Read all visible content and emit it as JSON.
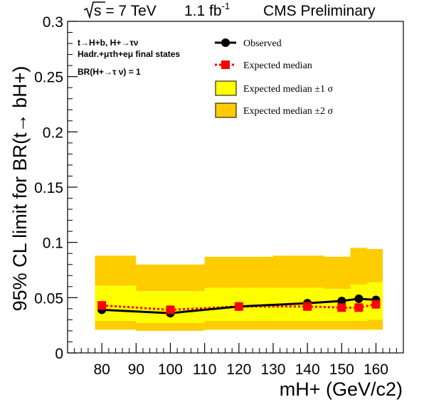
{
  "header": {
    "energy_label": "s = 7 TeV",
    "lumi_value": "1.1 fb",
    "lumi_exp": "-1",
    "experiment": "CMS Preliminary"
  },
  "annotations": {
    "line1": "t→H+b, H+→τν",
    "line2": "Hadr.+μτh+eμ final states",
    "line3": "BR(H+→τ ν) = 1"
  },
  "legend": {
    "observed": "Observed",
    "expected": "Expected median",
    "band1": "Expected median ±1 σ",
    "band2": "Expected median ±2 σ"
  },
  "colors": {
    "observed": "#000000",
    "expected": "#ff0000",
    "band1": "#ffff00",
    "band2": "#ffcc00"
  },
  "chart_data": {
    "type": "line",
    "xlabel": "mH+ (GeV/c2)",
    "ylabel": "95% CL limit for BR(t→ bH+)",
    "xlim": [
      70,
      168
    ],
    "ylim": [
      0,
      0.3
    ],
    "x_ticks": [
      80,
      90,
      100,
      110,
      120,
      130,
      140,
      150,
      160
    ],
    "y_ticks": [
      0,
      0.05,
      0.1,
      0.15,
      0.2,
      0.25,
      0.3
    ],
    "y_tick_labels": [
      "0",
      "0.05",
      "0.1",
      "0.15",
      "0.2",
      "0.25",
      "0.3"
    ],
    "x": [
      80,
      100,
      120,
      140,
      150,
      155,
      160
    ],
    "series": [
      {
        "name": "Observed",
        "values": [
          0.039,
          0.036,
          0.042,
          0.045,
          0.047,
          0.049,
          0.048
        ]
      },
      {
        "name": "Expected median",
        "values": [
          0.043,
          0.039,
          0.042,
          0.042,
          0.041,
          0.041,
          0.044
        ]
      }
    ],
    "band_1sigma": {
      "name": "Expected median ±1 σ",
      "lower": [
        0.029,
        0.027,
        0.029,
        0.029,
        0.029,
        0.029,
        0.03
      ],
      "upper": [
        0.061,
        0.056,
        0.059,
        0.059,
        0.058,
        0.062,
        0.064
      ]
    },
    "band_2sigma": {
      "name": "Expected median ±2 σ",
      "lower": [
        0.021,
        0.02,
        0.021,
        0.021,
        0.021,
        0.021,
        0.021
      ],
      "upper": [
        0.088,
        0.08,
        0.087,
        0.088,
        0.087,
        0.095,
        0.094
      ]
    },
    "legend_position": "top-right",
    "grid": false
  }
}
